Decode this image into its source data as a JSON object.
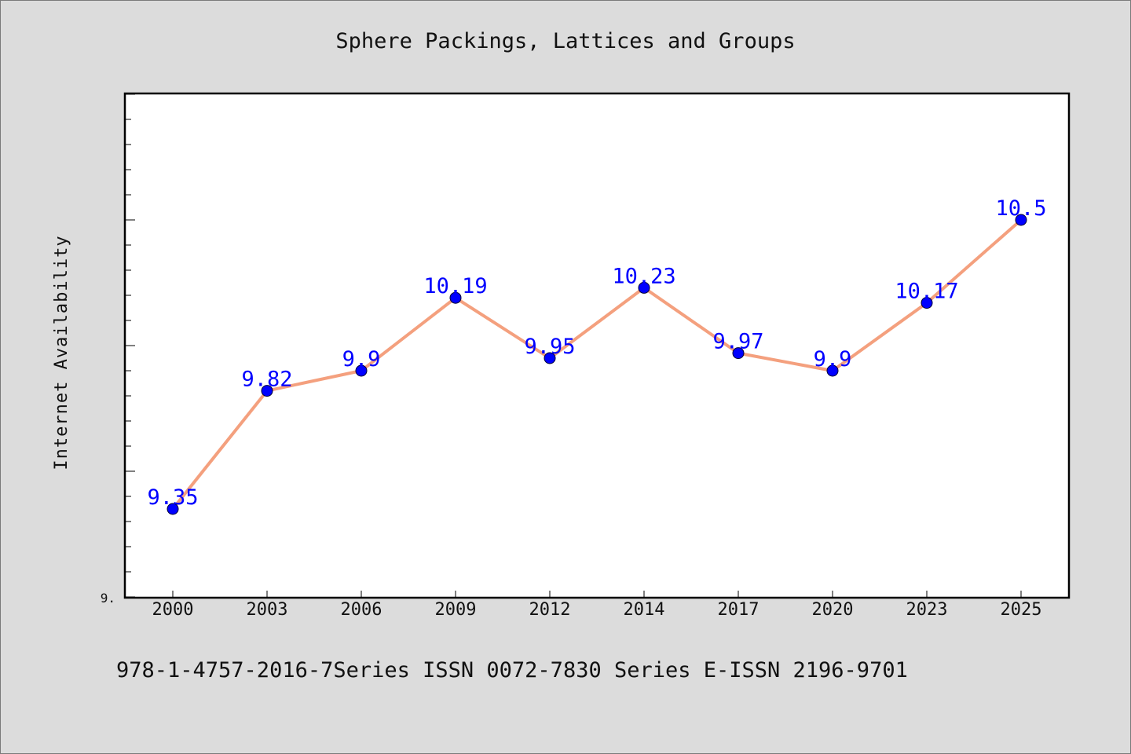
{
  "chart_data": {
    "type": "line",
    "title": "Sphere Packings, Lattices and Groups",
    "ylabel": "Internet Availability",
    "xlabel": "",
    "categories": [
      "2000",
      "2003",
      "2006",
      "2009",
      "2012",
      "2014",
      "2017",
      "2020",
      "2023",
      "2025"
    ],
    "series": [
      {
        "values": [
          9.35,
          9.82,
          9.9,
          10.19,
          9.95,
          10.23,
          9.97,
          9.9,
          10.17,
          10.5
        ]
      }
    ],
    "data_labels": [
      "9.35",
      "9.82",
      "9.9",
      "10.19",
      "9.95",
      "10.23",
      "9.97",
      "9.9",
      "10.17",
      "10.5"
    ],
    "ytick_label": "9.",
    "ylim": [
      9.0,
      11.0
    ],
    "grid": false,
    "line_color": "#f4a07e",
    "marker_color": "#0000ff",
    "label_color": "#0000ff",
    "footer": "978-1-4757-2016-7Series ISSN 0072-7830 Series E-ISSN 2196-9701"
  }
}
